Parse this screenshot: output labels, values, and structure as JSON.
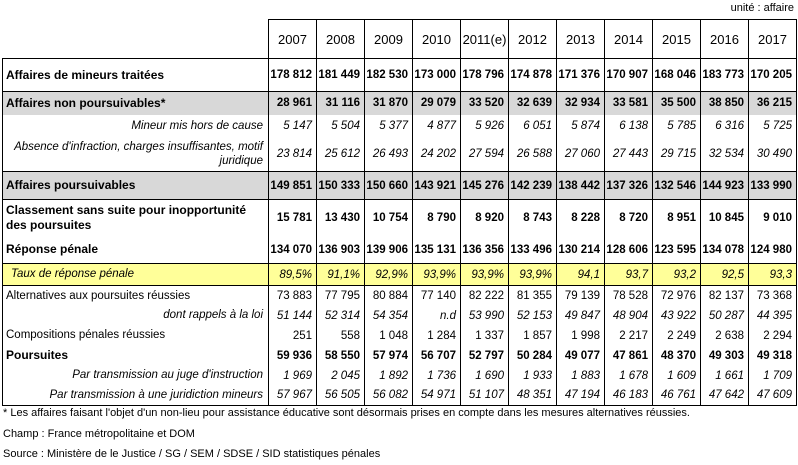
{
  "unit_label": "unité : affaire",
  "table": {
    "years": [
      "2007",
      "2008",
      "2009",
      "2010",
      "2011(e)",
      "2012",
      "2013",
      "2014",
      "2015",
      "2016",
      "2017"
    ],
    "rows": [
      {
        "label": "Affaires de mineurs traitées",
        "style": "bold",
        "values": [
          "178 812",
          "181 449",
          "182 530",
          "173 000",
          "178 796",
          "174 878",
          "171 376",
          "170 907",
          "168 046",
          "183 773",
          "170 205"
        ]
      },
      {
        "label": "Affaires non poursuivables*",
        "style": "gray",
        "values": [
          "28 961",
          "31 116",
          "31 870",
          "29 079",
          "33 520",
          "32 639",
          "32 934",
          "33 581",
          "35 500",
          "38 850",
          "36 215"
        ]
      },
      {
        "label": "Mineur mis hors de cause",
        "style": "sub",
        "values": [
          "5 147",
          "5 504",
          "5 377",
          "4 877",
          "5 926",
          "6 051",
          "5 874",
          "6 138",
          "5 785",
          "6 316",
          "5 725"
        ]
      },
      {
        "label": "Absence d'infraction, charges insuffisantes, motif juridique",
        "style": "sub",
        "values": [
          "23 814",
          "25 612",
          "26 493",
          "24 202",
          "27 594",
          "26 588",
          "27 060",
          "27 443",
          "29 715",
          "32 534",
          "30 490"
        ]
      },
      {
        "label": "Affaires poursuivables",
        "style": "gray",
        "values": [
          "149 851",
          "150 333",
          "150 660",
          "143 921",
          "145 276",
          "142 239",
          "138 442",
          "137 326",
          "132 546",
          "144 923",
          "133 990"
        ]
      },
      {
        "label": "Classement sans suite pour inopportunité des poursuites",
        "style": "bold",
        "values": [
          "15 781",
          "13 430",
          "10 754",
          "8 790",
          "8 920",
          "8 743",
          "8 228",
          "8 720",
          "8 951",
          "10 845",
          "9 010"
        ]
      },
      {
        "label": "Réponse pénale",
        "style": "bold",
        "values": [
          "134 070",
          "136 903",
          "139 906",
          "135 131",
          "136 356",
          "133 496",
          "130 214",
          "128 606",
          "123 595",
          "134 078",
          "124 980"
        ]
      },
      {
        "label": "Taux de réponse pénale",
        "style": "yellow",
        "values": [
          "89,5%",
          "91,1%",
          "92,9%",
          "93,9%",
          "93,9%",
          "93,9%",
          "94,1",
          "93,7",
          "93,2",
          "92,5",
          "93,3"
        ]
      },
      {
        "label": "Alternatives aux poursuites réussies",
        "style": "normal",
        "values": [
          "73 883",
          "77 795",
          "80 884",
          "77 140",
          "82 222",
          "81 355",
          "79 139",
          "78 528",
          "72 976",
          "82 137",
          "73 368"
        ]
      },
      {
        "label": "dont rappels à la loi",
        "style": "sub",
        "values": [
          "51 144",
          "52 314",
          "54 354",
          "n.d",
          "53 990",
          "52 153",
          "49 847",
          "48 904",
          "43 922",
          "50 287",
          "44 395"
        ]
      },
      {
        "label": "Compositions pénales réussies",
        "style": "normal",
        "values": [
          "251",
          "558",
          "1 048",
          "1 284",
          "1 337",
          "1 857",
          "1 998",
          "2 217",
          "2 249",
          "2 638",
          "2 294"
        ]
      },
      {
        "label": "Poursuites",
        "style": "bold",
        "values": [
          "59 936",
          "58 550",
          "57 974",
          "56 707",
          "52 797",
          "50 284",
          "49 077",
          "47 861",
          "48 370",
          "49 303",
          "49 318"
        ]
      },
      {
        "label": "Par transmission au juge d'instruction",
        "style": "sub",
        "values": [
          "1 969",
          "2 045",
          "1 892",
          "1 736",
          "1 690",
          "1 933",
          "1 883",
          "1 678",
          "1 609",
          "1 661",
          "1 709"
        ]
      },
      {
        "label": "Par transmission à une juridiction mineurs",
        "style": "sub",
        "values": [
          "57 967",
          "56 505",
          "56 082",
          "54 971",
          "51 107",
          "48 351",
          "47 194",
          "46 183",
          "46 761",
          "47 642",
          "47 609"
        ]
      }
    ]
  },
  "footnotes": [
    "* Les affaires faisant l'objet d'un non-lieu pour assistance éducative sont désormais prises en compte dans les mesures alternatives réussies.",
    "Champ : France métropolitaine et DOM",
    "Source : Ministère de le Justice / SG / SEM / SDSE / SID statistiques pénales"
  ],
  "colors": {
    "row_gray": "#D8D8D8",
    "highlight_yellow": "#FFFF99",
    "border": "#000000"
  }
}
